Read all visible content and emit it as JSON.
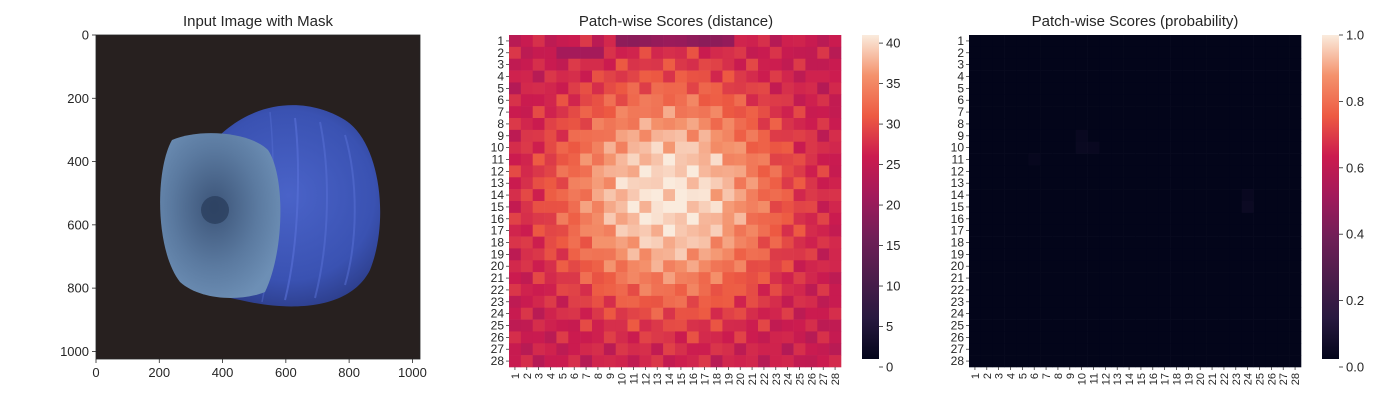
{
  "chart_data": [
    {
      "type": "image",
      "title": "Input Image with Mask",
      "xlim": [
        0,
        1024
      ],
      "ylim": [
        1024,
        0
      ],
      "xticks": [
        0,
        200,
        400,
        600,
        800,
        1000
      ],
      "yticks": [
        0,
        200,
        400,
        600,
        800,
        1000
      ],
      "image_content": "blue hazelnut on dark background",
      "colors": {
        "background": "#27201f",
        "nut": "#3d55b8",
        "cap": "#4f6f95"
      }
    },
    {
      "type": "heatmap",
      "title": "Patch-wise Scores (distance)",
      "rows": 28,
      "cols": 28,
      "row_labels": [
        "1",
        "2",
        "3",
        "4",
        "5",
        "6",
        "7",
        "8",
        "9",
        "10",
        "11",
        "12",
        "13",
        "14",
        "15",
        "16",
        "17",
        "18",
        "19",
        "20",
        "21",
        "22",
        "23",
        "24",
        "25",
        "26",
        "27",
        "28"
      ],
      "col_labels": [
        "1",
        "2",
        "3",
        "4",
        "5",
        "6",
        "7",
        "8",
        "9",
        "10",
        "11",
        "12",
        "13",
        "14",
        "15",
        "16",
        "17",
        "18",
        "19",
        "20",
        "21",
        "22",
        "23",
        "24",
        "25",
        "26",
        "27",
        "28"
      ],
      "colorbar": {
        "min": 0,
        "max": 41,
        "ticks": [
          0,
          5,
          10,
          15,
          20,
          25,
          30,
          35,
          40
        ]
      },
      "colormap": "rocket",
      "center": {
        "row": 14,
        "col": 14
      },
      "peak_value": 40.5,
      "edge_value": 25,
      "low_value": 19,
      "low_region": "top edge, columns 10-19, value about 18-20"
    },
    {
      "type": "heatmap",
      "title": "Patch-wise Scores (probability)",
      "rows": 28,
      "cols": 28,
      "row_labels": [
        "1",
        "2",
        "3",
        "4",
        "5",
        "6",
        "7",
        "8",
        "9",
        "10",
        "11",
        "12",
        "13",
        "14",
        "15",
        "16",
        "17",
        "18",
        "19",
        "20",
        "21",
        "22",
        "23",
        "24",
        "25",
        "26",
        "27",
        "28"
      ],
      "col_labels": [
        "1",
        "2",
        "3",
        "4",
        "5",
        "6",
        "7",
        "8",
        "9",
        "10",
        "11",
        "12",
        "13",
        "14",
        "15",
        "16",
        "17",
        "18",
        "19",
        "20",
        "21",
        "22",
        "23",
        "24",
        "25",
        "26",
        "27",
        "28"
      ],
      "colorbar": {
        "min": 0.0,
        "max": 1.0,
        "ticks": [
          "0.0",
          "0.2",
          "0.4",
          "0.6",
          "0.8",
          "1.0"
        ]
      },
      "colormap": "rocket",
      "base_value": 0.0,
      "nonzero_cells": [
        {
          "row": 9,
          "col": 10,
          "value": 0.02
        },
        {
          "row": 10,
          "col": 10,
          "value": 0.025
        },
        {
          "row": 10,
          "col": 11,
          "value": 0.02
        },
        {
          "row": 11,
          "col": 6,
          "value": 0.015
        },
        {
          "row": 14,
          "col": 24,
          "value": 0.02
        },
        {
          "row": 15,
          "col": 24,
          "value": 0.03
        }
      ]
    }
  ]
}
